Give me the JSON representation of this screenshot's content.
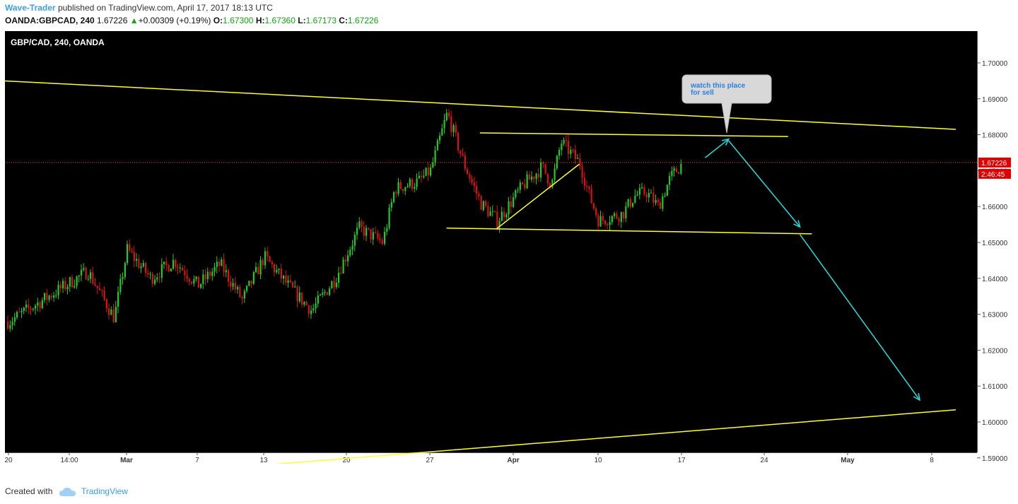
{
  "header": {
    "author": "Wave-Trader",
    "published_text": "published on TradingView.com, April 17, 2017 18:13 UTC",
    "symbol": "OANDA:GBPCAD, 240",
    "last": "1.67226",
    "change": "+0.00309 (+0.19%)",
    "open_label": "O:",
    "open": "1.67300",
    "high_label": "H:",
    "high": "1.67360",
    "low_label": "L:",
    "low": "1.67173",
    "close_label": "C:",
    "close": "1.67226"
  },
  "footer": {
    "created_with": "Created with",
    "brand": "TradingView"
  },
  "colors": {
    "background": "#000000",
    "up_candle": "#22cc22",
    "down_candle": "#dd1111",
    "trend_lines": "#ffff33",
    "arrows": "#22dddd",
    "price_line": "#ff3333",
    "callout_bg": "#d8d8d8",
    "callout_text": "#2a7fe0"
  },
  "chart_data": {
    "type": "candlestick",
    "title": "GBP/CAD, 240, OANDA",
    "symbol": "GBPCAD",
    "interval": "240",
    "x_tick_labels": [
      "20",
      "14:00",
      "Mar",
      "7",
      "13",
      "20",
      "27",
      "Apr",
      "10",
      "17",
      "24",
      "May",
      "8"
    ],
    "y_tick_labels": [
      "1.70000",
      "1.69000",
      "1.68000",
      "1.67000",
      "1.66000",
      "1.65000",
      "1.64000",
      "1.63000",
      "1.62000",
      "1.61000",
      "1.60000",
      "1.59000"
    ],
    "ylim": [
      1.588,
      1.708
    ],
    "grid": false,
    "last_price": "1.67226",
    "countdown": "2:46:45",
    "annotation": "watch this place\nfor sell",
    "price_path": [
      [
        "Feb 20",
        1.628
      ],
      [
        "Feb 23",
        1.635
      ],
      [
        "Feb 26",
        1.642
      ],
      [
        "Feb 28",
        1.629
      ],
      [
        "Mar 1",
        1.648
      ],
      [
        "Mar 3",
        1.64
      ],
      [
        "Mar 5",
        1.645
      ],
      [
        "Mar 7",
        1.638
      ],
      [
        "Mar 9",
        1.644
      ],
      [
        "Mar 11",
        1.634
      ],
      [
        "Mar 13",
        1.646
      ],
      [
        "Mar 15",
        1.638
      ],
      [
        "Mar 17",
        1.631
      ],
      [
        "Mar 19",
        1.64
      ],
      [
        "Mar 21",
        1.654
      ],
      [
        "Mar 23",
        1.65
      ],
      [
        "Mar 24",
        1.665
      ],
      [
        "Mar 26",
        1.667
      ],
      [
        "Mar 27",
        1.67
      ],
      [
        "Mar 28",
        1.686
      ],
      [
        "Mar 29",
        1.672
      ],
      [
        "Mar 30",
        1.661
      ],
      [
        "Mar 31",
        1.656
      ],
      [
        "Apr 2",
        1.666
      ],
      [
        "Apr 4",
        1.671
      ],
      [
        "Apr 5",
        1.666
      ],
      [
        "Apr 6",
        1.678
      ],
      [
        "Apr 8",
        1.672
      ],
      [
        "Apr 9",
        1.663
      ],
      [
        "Apr 10",
        1.656
      ],
      [
        "Apr 12",
        1.658
      ],
      [
        "Apr 13",
        1.663
      ],
      [
        "Apr 14",
        1.664
      ],
      [
        "Apr 15",
        1.66
      ],
      [
        "Apr 16",
        1.668
      ],
      [
        "Apr 17",
        1.672
      ]
    ],
    "lines": [
      {
        "name": "upper-channel-line",
        "from": [
          "Feb 17",
          1.6955
        ],
        "to": [
          "May 10",
          1.6815
        ]
      },
      {
        "name": "lower-channel-line",
        "from": [
          "Mar 13",
          1.588
        ],
        "to": [
          "May 10",
          1.6034
        ]
      },
      {
        "name": "resistance-line",
        "from": [
          "Mar 30",
          1.6805
        ],
        "to": [
          "Apr 26",
          1.6795
        ]
      },
      {
        "name": "support-line",
        "from": [
          "Mar 28",
          1.654
        ],
        "to": [
          "Apr 28",
          1.6524
        ]
      },
      {
        "name": "rising-trendline",
        "from": [
          "Mar 31",
          1.6538
        ],
        "to": [
          "Apr 8",
          1.6718
        ]
      }
    ],
    "arrows": [
      {
        "name": "arrow-up-to-resistance",
        "from": [
          "Apr 19",
          1.6736
        ],
        "to": [
          "Apr 21",
          1.6788
        ]
      },
      {
        "name": "arrow-down-to-support",
        "from": [
          "Apr 21",
          1.6783
        ],
        "to": [
          "Apr 27",
          1.6543
        ]
      },
      {
        "name": "arrow-down-to-target",
        "from": [
          "Apr 27",
          1.6522
        ],
        "to": [
          "May 7",
          1.6061
        ]
      }
    ]
  }
}
